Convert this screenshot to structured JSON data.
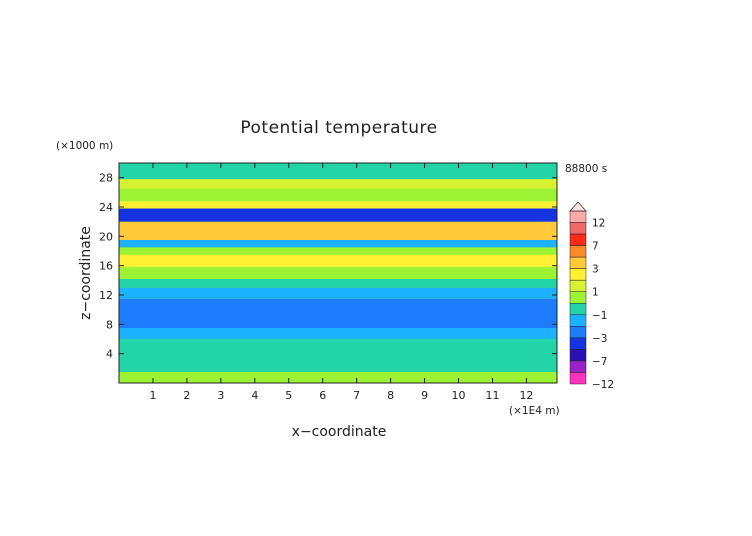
{
  "chart_data": {
    "type": "heatmap",
    "title": "Potential temperature",
    "xlabel": "x−coordinate",
    "ylabel": "z−coordinate",
    "x_unit": "(×1E4 m)",
    "y_unit": "(×1000 m)",
    "time_label": "88800 s",
    "xlim": [
      0,
      12.9
    ],
    "ylim": [
      0,
      30
    ],
    "x_ticks": [
      1,
      2,
      3,
      4,
      5,
      6,
      7,
      8,
      9,
      10,
      11,
      12
    ],
    "y_ticks": [
      4,
      8,
      12,
      16,
      20,
      24,
      28
    ],
    "colorbar": {
      "levels": [
        -12,
        -9,
        -7,
        -5,
        -3,
        -2,
        -1,
        0,
        1,
        2,
        3,
        5,
        7,
        9,
        12
      ],
      "labels": [
        "12",
        "7",
        "3",
        "1",
        "−1",
        "−3",
        "−7",
        "−12"
      ],
      "colors": [
        "#ff33bb",
        "#9a22c8",
        "#2a10b0",
        "#1533e0",
        "#1e7cff",
        "#1cb2ff",
        "#22d4a8",
        "#9cf233",
        "#d8f233",
        "#fff033",
        "#ffc93a",
        "#ff8a2a",
        "#ff2a1a",
        "#f06868",
        "#ffaaaa"
      ]
    },
    "bands": [
      {
        "z": [
          0.0,
          1.5
        ],
        "value": 0.1
      },
      {
        "z": [
          1.5,
          6.0
        ],
        "value": -0.5
      },
      {
        "z": [
          6.0,
          7.5
        ],
        "value": -1.3
      },
      {
        "z": [
          7.5,
          11.5
        ],
        "value": -2.6
      },
      {
        "z": [
          11.5,
          13.0
        ],
        "value": -1.8
      },
      {
        "z": [
          13.0,
          14.2
        ],
        "value": -0.6
      },
      {
        "z": [
          14.2,
          15.8
        ],
        "value": 0.8
      },
      {
        "z": [
          15.8,
          17.5
        ],
        "value": 2.5
      },
      {
        "z": [
          17.5,
          18.5
        ],
        "value": 0.4
      },
      {
        "z": [
          18.5,
          19.5
        ],
        "value": -1.8
      },
      {
        "z": [
          19.5,
          20.8
        ],
        "value": 3.2
      },
      {
        "z": [
          20.8,
          22.0
        ],
        "value": 3.8
      },
      {
        "z": [
          22.0,
          23.8
        ],
        "value": -3.5
      },
      {
        "z": [
          23.8,
          24.8
        ],
        "value": 2.2
      },
      {
        "z": [
          24.8,
          26.5
        ],
        "value": 0.6
      },
      {
        "z": [
          26.5,
          27.8
        ],
        "value": 1.5
      },
      {
        "z": [
          27.8,
          30.0
        ],
        "value": -0.4
      }
    ]
  }
}
